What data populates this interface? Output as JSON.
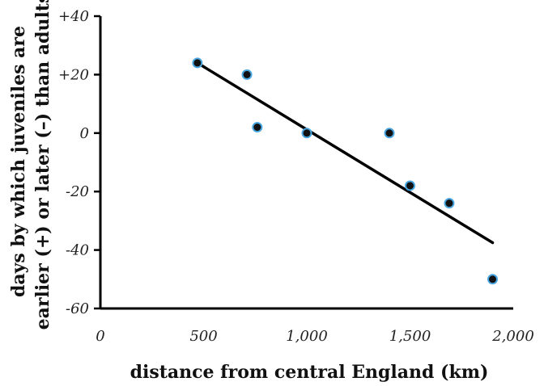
{
  "chart_data": {
    "type": "scatter",
    "xlabel": "distance from central England (km)",
    "ylabel_lines": [
      "days by which juveniles are",
      "earlier (+) or later (–) than adults"
    ],
    "xlim": [
      0,
      2000
    ],
    "ylim": [
      -60,
      40
    ],
    "x_ticks": [
      {
        "value": 0,
        "label": "0"
      },
      {
        "value": 500,
        "label": "500"
      },
      {
        "value": 1000,
        "label": "1,000"
      },
      {
        "value": 1500,
        "label": "1,500"
      },
      {
        "value": 2000,
        "label": "2,000"
      }
    ],
    "y_ticks": [
      {
        "value": 40,
        "label": "+40"
      },
      {
        "value": 20,
        "label": "+20"
      },
      {
        "value": 0,
        "label": "0"
      },
      {
        "value": -20,
        "label": "-20"
      },
      {
        "value": -40,
        "label": "-40"
      },
      {
        "value": -60,
        "label": "-60"
      }
    ],
    "points": [
      {
        "x": 470,
        "y": 24
      },
      {
        "x": 710,
        "y": 20
      },
      {
        "x": 760,
        "y": 2
      },
      {
        "x": 1000,
        "y": 0
      },
      {
        "x": 1400,
        "y": 0
      },
      {
        "x": 1500,
        "y": -18
      },
      {
        "x": 1690,
        "y": -24
      },
      {
        "x": 1900,
        "y": -50
      }
    ],
    "trendline": {
      "x": [
        470,
        1900
      ],
      "y": [
        24,
        -37.5
      ]
    },
    "point_color": "#111111",
    "point_edge_color": "#4aa6e0",
    "grid": false
  }
}
